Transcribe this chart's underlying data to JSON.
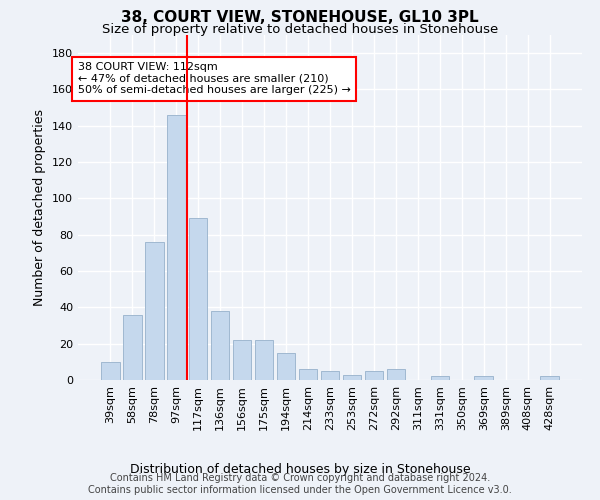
{
  "title": "38, COURT VIEW, STONEHOUSE, GL10 3PL",
  "subtitle": "Size of property relative to detached houses in Stonehouse",
  "xlabel": "Distribution of detached houses by size in Stonehouse",
  "ylabel": "Number of detached properties",
  "bar_color": "#c5d8ed",
  "bar_edge_color": "#a0b8d0",
  "vline_color": "red",
  "annotation_text": "38 COURT VIEW: 112sqm\n← 47% of detached houses are smaller (210)\n50% of semi-detached houses are larger (225) →",
  "annotation_box_color": "white",
  "annotation_box_edge_color": "red",
  "categories": [
    "39sqm",
    "58sqm",
    "78sqm",
    "97sqm",
    "117sqm",
    "136sqm",
    "156sqm",
    "175sqm",
    "194sqm",
    "214sqm",
    "233sqm",
    "253sqm",
    "272sqm",
    "292sqm",
    "311sqm",
    "331sqm",
    "350sqm",
    "369sqm",
    "389sqm",
    "408sqm",
    "428sqm"
  ],
  "values": [
    10,
    36,
    76,
    146,
    89,
    38,
    22,
    22,
    15,
    6,
    5,
    3,
    5,
    6,
    0,
    2,
    0,
    2,
    0,
    0,
    2
  ],
  "ylim": [
    0,
    190
  ],
  "yticks": [
    0,
    20,
    40,
    60,
    80,
    100,
    120,
    140,
    160,
    180
  ],
  "background_color": "#eef2f8",
  "grid_color": "white",
  "footer_text": "Contains HM Land Registry data © Crown copyright and database right 2024.\nContains public sector information licensed under the Open Government Licence v3.0.",
  "title_fontsize": 11,
  "subtitle_fontsize": 9.5,
  "xlabel_fontsize": 9,
  "ylabel_fontsize": 9,
  "tick_fontsize": 8,
  "footer_fontsize": 7,
  "annotation_fontsize": 8
}
